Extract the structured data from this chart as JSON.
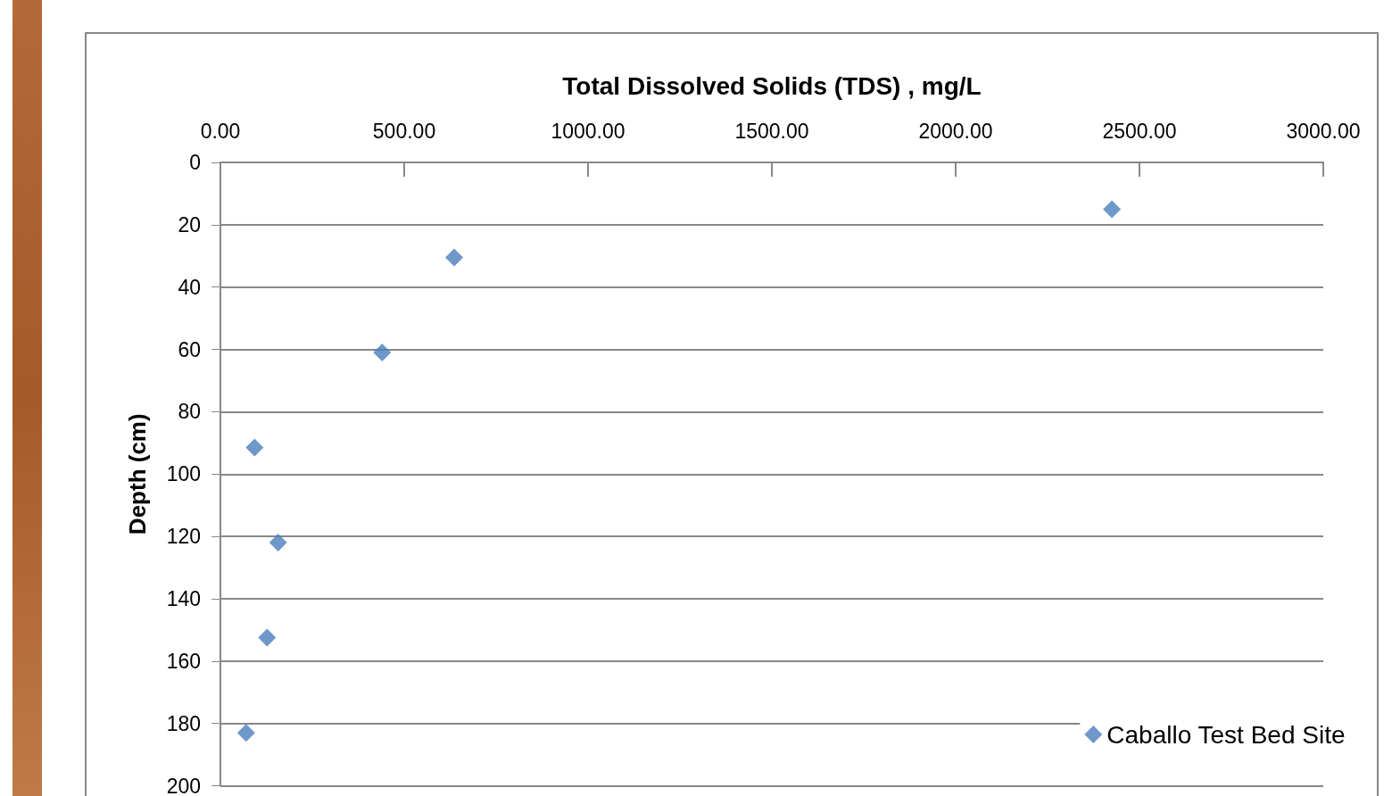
{
  "chart_data": {
    "type": "scatter",
    "xlabel": "Total Dissolved Solids (TDS) , mg/L",
    "ylabel": "Depth (cm)",
    "series": [
      {
        "name": "Caballo Test Bed Site",
        "color": "#4a7ebb",
        "x": [
          2425,
          636,
          440,
          93,
          157,
          127,
          70
        ],
        "values": [
          15,
          30.5,
          61,
          91.5,
          122,
          152.5,
          183
        ]
      }
    ],
    "xlim": [
      0,
      3000
    ],
    "xticks": [
      {
        "value": 0,
        "label": "0.00"
      },
      {
        "value": 500,
        "label": "500.00"
      },
      {
        "value": 1000,
        "label": "1000.00"
      },
      {
        "value": 1500,
        "label": "1500.00"
      },
      {
        "value": 2000,
        "label": "2000.00"
      },
      {
        "value": 2500,
        "label": "2500.00"
      },
      {
        "value": 3000,
        "label": "3000.00"
      }
    ],
    "ylim": [
      200,
      0
    ],
    "yticks": [
      0,
      20,
      40,
      60,
      80,
      100,
      120,
      140,
      160,
      180,
      200
    ],
    "grid": "y",
    "legend": "bottom right",
    "marker": "diamond"
  }
}
